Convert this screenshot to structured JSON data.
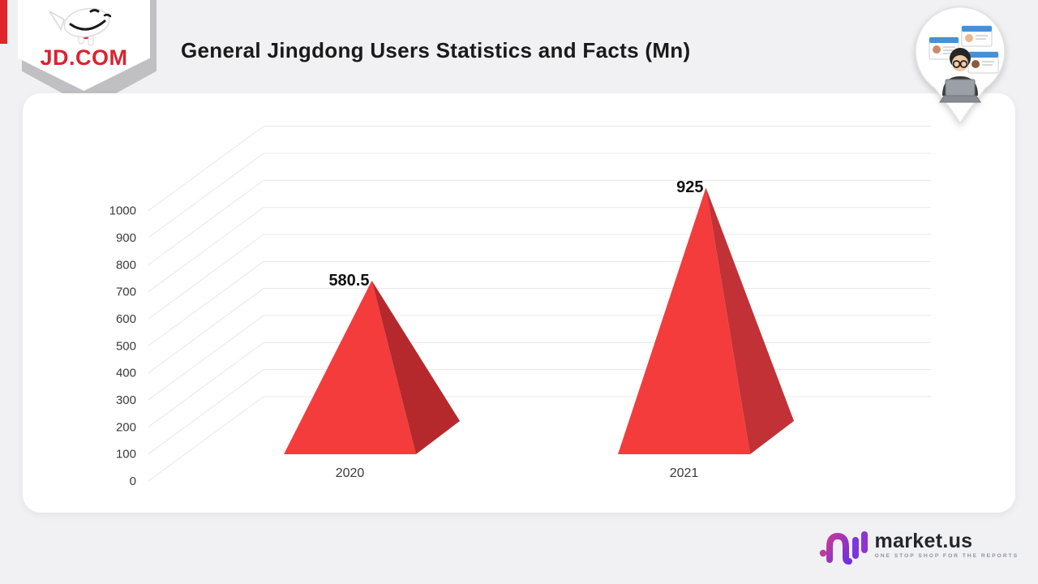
{
  "header": {
    "jd_logo": {
      "text": "JD.COM",
      "color": "#d9232e",
      "mascot_icon": "jd-joy-dog-icon"
    },
    "title": "General Jingdong Users Statistics and Facts (Mn)",
    "badge_icon": "people-profiles-pin-icon"
  },
  "chart_data": {
    "type": "bar",
    "variant": "3d-pyramid",
    "title": "General Jingdong Users Statistics and Facts (Mn)",
    "categories": [
      "2020",
      "2021"
    ],
    "values": [
      580.5,
      925
    ],
    "value_labels": [
      "580.5",
      "925"
    ],
    "y_ticks": [
      0,
      100,
      200,
      300,
      400,
      500,
      600,
      700,
      800,
      900,
      1000
    ],
    "ylim": [
      0,
      1000
    ],
    "grid": true,
    "legend": "none",
    "colors": {
      "front_face": "#f43c3c",
      "side_faces": [
        "#b5292d",
        "#c23135"
      ],
      "gridline": "#e8e8ea",
      "tick_label": "#3a3a3a",
      "value_label": "#111111"
    }
  },
  "footer": {
    "brand_name": "market.us",
    "brand_tagline": "ONE STOP SHOP FOR THE REPORTS",
    "brand_logo_icon": "market-us-logo",
    "brand_accent": "#7d35df"
  }
}
